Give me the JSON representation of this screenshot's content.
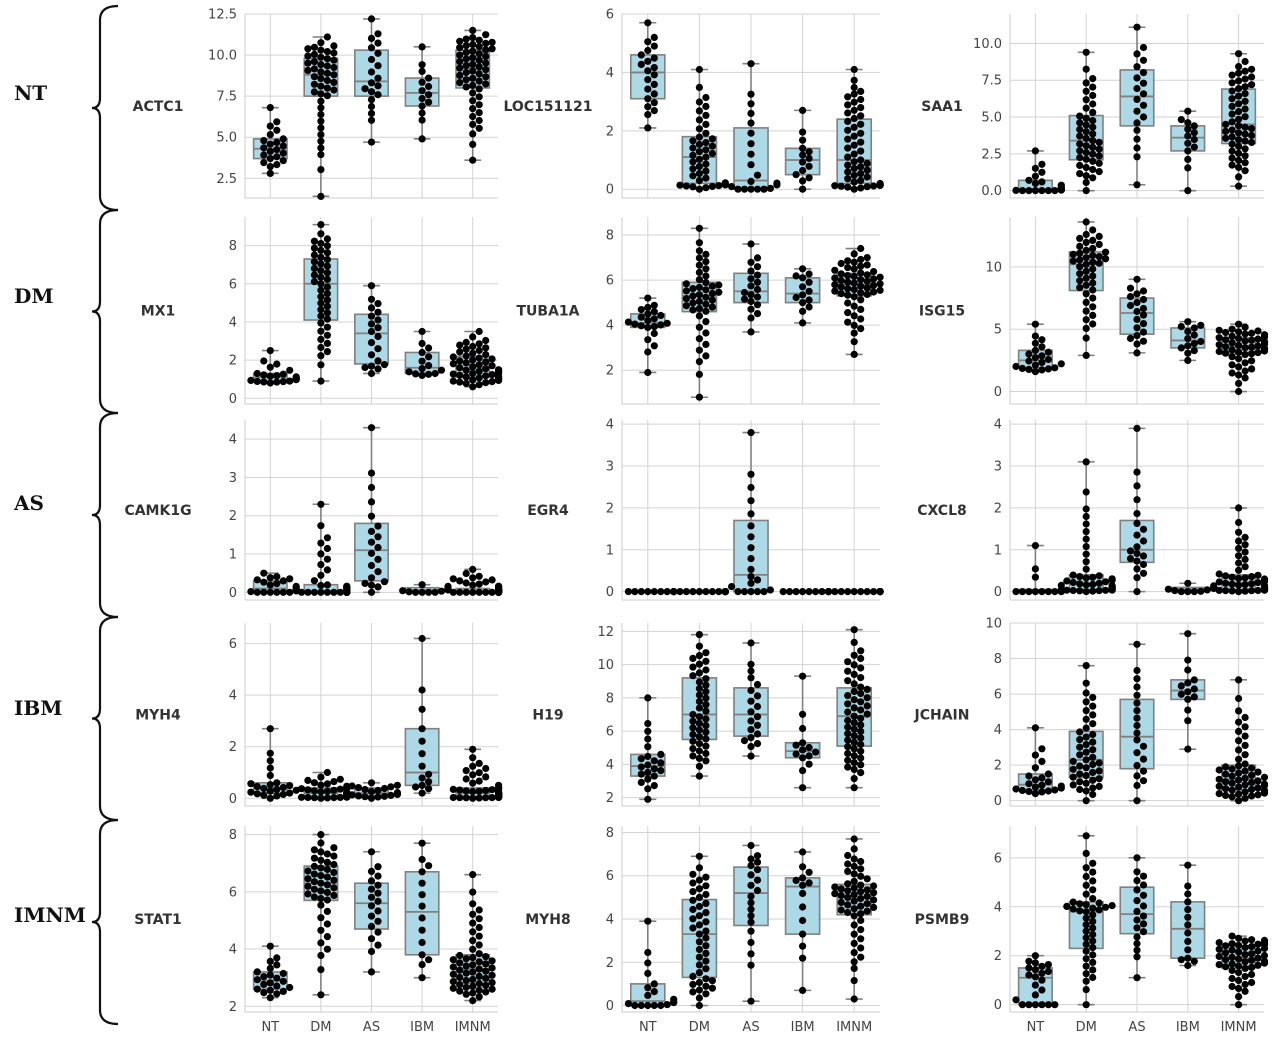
{
  "row_labels": [
    "NT",
    "DM",
    "AS",
    "IBM",
    "IMNM"
  ],
  "colors": {
    "box_fill": "#add8e6",
    "box_edge": "#808080",
    "point": "#000000",
    "grid": "#d3d3d3"
  },
  "chart_data": {
    "type": "box-swarm",
    "categories": [
      "NT",
      "DM",
      "AS",
      "IBM",
      "IMNM"
    ],
    "grid": true,
    "panels": [
      {
        "gene": "ACTC1",
        "row": 0,
        "col": 0,
        "ylim": [
          1.3,
          12.5
        ],
        "yticks": [
          "2.5",
          "5.0",
          "7.5",
          "10.0",
          "12.5"
        ],
        "yvals": [
          2.5,
          5,
          7.5,
          10,
          12.5
        ],
        "boxes": [
          {
            "q1": 3.7,
            "med": 4.3,
            "q3": 4.9,
            "lo": 2.8,
            "hi": 6.8,
            "n": 22
          },
          {
            "q1": 7.5,
            "med": 8.8,
            "q3": 9.8,
            "lo": 1.4,
            "hi": 11.1,
            "n": 45
          },
          {
            "q1": 7.5,
            "med": 8.4,
            "q3": 10.3,
            "lo": 4.7,
            "hi": 12.2,
            "n": 20
          },
          {
            "q1": 6.9,
            "med": 7.7,
            "q3": 8.6,
            "lo": 4.9,
            "hi": 10.5,
            "n": 14
          },
          {
            "q1": 8.0,
            "med": 9.2,
            "q3": 10.3,
            "lo": 3.6,
            "hi": 11.5,
            "n": 55
          }
        ]
      },
      {
        "gene": "LOC151121",
        "row": 0,
        "col": 1,
        "ylim": [
          -0.3,
          6
        ],
        "yticks": [
          "0",
          "2",
          "4",
          "6"
        ],
        "yvals": [
          0,
          2,
          4,
          6
        ],
        "boxes": [
          {
            "q1": 3.1,
            "med": 4.0,
            "q3": 4.6,
            "lo": 2.1,
            "hi": 5.7,
            "n": 22
          },
          {
            "q1": 0.2,
            "med": 1.1,
            "q3": 1.8,
            "lo": 0,
            "hi": 4.1,
            "n": 45
          },
          {
            "q1": 0.0,
            "med": 0.3,
            "q3": 2.1,
            "lo": 0,
            "hi": 4.3,
            "n": 20
          },
          {
            "q1": 0.5,
            "med": 1.0,
            "q3": 1.4,
            "lo": 0,
            "hi": 2.7,
            "n": 14
          },
          {
            "q1": 0.2,
            "med": 1.0,
            "q3": 2.4,
            "lo": 0,
            "hi": 4.1,
            "n": 55
          }
        ]
      },
      {
        "gene": "SAA1",
        "row": 0,
        "col": 2,
        "ylim": [
          -0.5,
          12
        ],
        "yticks": [
          "0.0",
          "2.5",
          "5.0",
          "7.5",
          "10.0"
        ],
        "yvals": [
          0,
          2.5,
          5,
          7.5,
          10
        ],
        "boxes": [
          {
            "q1": 0,
            "med": 0.1,
            "q3": 0.7,
            "lo": 0,
            "hi": 2.7,
            "n": 22
          },
          {
            "q1": 2.1,
            "med": 3.4,
            "q3": 5.1,
            "lo": 0,
            "hi": 9.4,
            "n": 45
          },
          {
            "q1": 4.4,
            "med": 6.4,
            "q3": 8.2,
            "lo": 0.4,
            "hi": 11.1,
            "n": 20
          },
          {
            "q1": 2.7,
            "med": 3.6,
            "q3": 4.4,
            "lo": 0,
            "hi": 5.4,
            "n": 14
          },
          {
            "q1": 3.2,
            "med": 4.5,
            "q3": 6.9,
            "lo": 0.3,
            "hi": 9.3,
            "n": 55
          }
        ]
      },
      {
        "gene": "MX1",
        "row": 1,
        "col": 0,
        "ylim": [
          -0.3,
          9.5
        ],
        "yticks": [
          "0",
          "2",
          "4",
          "6",
          "8"
        ],
        "yvals": [
          0,
          2,
          4,
          6,
          8
        ],
        "boxes": [
          {
            "q1": 0.9,
            "med": 1.1,
            "q3": 1.3,
            "lo": 0.8,
            "hi": 2.5,
            "n": 22
          },
          {
            "q1": 4.1,
            "med": 6.0,
            "q3": 7.3,
            "lo": 0.9,
            "hi": 9.1,
            "n": 45
          },
          {
            "q1": 1.8,
            "med": 3.4,
            "q3": 4.4,
            "lo": 1.3,
            "hi": 5.9,
            "n": 20
          },
          {
            "q1": 1.3,
            "med": 1.6,
            "q3": 2.4,
            "lo": 1.2,
            "hi": 3.5,
            "n": 14
          },
          {
            "q1": 1.1,
            "med": 1.5,
            "q3": 2.2,
            "lo": 0.6,
            "hi": 3.5,
            "n": 55
          }
        ]
      },
      {
        "gene": "TUBA1A",
        "row": 1,
        "col": 1,
        "ylim": [
          0.5,
          8.8
        ],
        "yticks": [
          "2",
          "4",
          "6",
          "8"
        ],
        "yvals": [
          2,
          4,
          6,
          8
        ],
        "boxes": [
          {
            "q1": 3.9,
            "med": 4.1,
            "q3": 4.5,
            "lo": 1.9,
            "hi": 5.2,
            "n": 22
          },
          {
            "q1": 4.6,
            "med": 5.3,
            "q3": 5.9,
            "lo": 0.8,
            "hi": 8.3,
            "n": 45
          },
          {
            "q1": 5.0,
            "med": 5.5,
            "q3": 6.3,
            "lo": 3.7,
            "hi": 7.6,
            "n": 20
          },
          {
            "q1": 5.0,
            "med": 5.4,
            "q3": 6.1,
            "lo": 4.1,
            "hi": 6.5,
            "n": 14
          },
          {
            "q1": 5.3,
            "med": 5.8,
            "q3": 6.3,
            "lo": 2.7,
            "hi": 7.4,
            "n": 55
          }
        ]
      },
      {
        "gene": "ISG15",
        "row": 1,
        "col": 2,
        "ylim": [
          -1,
          14
        ],
        "yticks": [
          "0",
          "5",
          "10"
        ],
        "yvals": [
          0,
          5,
          10
        ],
        "boxes": [
          {
            "q1": 1.9,
            "med": 2.5,
            "q3": 3.3,
            "lo": 1.6,
            "hi": 5.4,
            "n": 22
          },
          {
            "q1": 8.1,
            "med": 10.2,
            "q3": 11.2,
            "lo": 2.9,
            "hi": 13.6,
            "n": 45
          },
          {
            "q1": 4.6,
            "med": 6.3,
            "q3": 7.5,
            "lo": 3.1,
            "hi": 9.0,
            "n": 20
          },
          {
            "q1": 3.5,
            "med": 4.1,
            "q3": 5.1,
            "lo": 2.5,
            "hi": 5.6,
            "n": 14
          },
          {
            "q1": 3.0,
            "med": 3.6,
            "q3": 4.3,
            "lo": 0,
            "hi": 5.4,
            "n": 55
          }
        ]
      },
      {
        "gene": "CAMK1G",
        "row": 2,
        "col": 0,
        "ylim": [
          -0.2,
          4.5
        ],
        "yticks": [
          "0",
          "1",
          "2",
          "3",
          "4"
        ],
        "yvals": [
          0,
          1,
          2,
          3,
          4
        ],
        "boxes": [
          {
            "q1": 0,
            "med": 0.1,
            "q3": 0.3,
            "lo": 0,
            "hi": 0.5,
            "n": 22
          },
          {
            "q1": 0,
            "med": 0,
            "q3": 0.2,
            "lo": 0,
            "hi": 2.3,
            "n": 45
          },
          {
            "q1": 0.3,
            "med": 1.1,
            "q3": 1.8,
            "lo": 0,
            "hi": 4.3,
            "n": 20
          },
          {
            "q1": 0,
            "med": 0.05,
            "q3": 0.12,
            "lo": 0,
            "hi": 0.2,
            "n": 14
          },
          {
            "q1": 0,
            "med": 0.02,
            "q3": 0.1,
            "lo": 0,
            "hi": 0.6,
            "n": 55
          }
        ]
      },
      {
        "gene": "EGR4",
        "row": 2,
        "col": 1,
        "ylim": [
          -0.2,
          4.1
        ],
        "yticks": [
          "0",
          "1",
          "2",
          "3",
          "4"
        ],
        "yvals": [
          0,
          1,
          2,
          3,
          4
        ],
        "boxes": [
          {
            "q1": 0,
            "med": 0,
            "q3": 0,
            "lo": 0,
            "hi": 0,
            "n": 12
          },
          {
            "q1": 0,
            "med": 0,
            "q3": 0,
            "lo": 0,
            "hi": 0,
            "n": 20
          },
          {
            "q1": 0,
            "med": 0.4,
            "q3": 1.7,
            "lo": 0,
            "hi": 3.8,
            "n": 20
          },
          {
            "q1": 0,
            "med": 0,
            "q3": 0,
            "lo": 0,
            "hi": 0,
            "n": 12
          },
          {
            "q1": 0,
            "med": 0,
            "q3": 0,
            "lo": 0,
            "hi": 0,
            "n": 20
          }
        ]
      },
      {
        "gene": "CXCL8",
        "row": 2,
        "col": 2,
        "ylim": [
          -0.2,
          4.1
        ],
        "yticks": [
          "0",
          "1",
          "2",
          "3",
          "4"
        ],
        "yvals": [
          0,
          1,
          2,
          3,
          4
        ],
        "boxes": [
          {
            "q1": 0,
            "med": 0,
            "q3": 0.05,
            "lo": 0,
            "hi": 1.1,
            "n": 16
          },
          {
            "q1": 0.05,
            "med": 0.2,
            "q3": 0.4,
            "lo": 0,
            "hi": 3.1,
            "n": 45
          },
          {
            "q1": 0.7,
            "med": 1.0,
            "q3": 1.7,
            "lo": 0,
            "hi": 3.9,
            "n": 20
          },
          {
            "q1": 0,
            "med": 0.05,
            "q3": 0.1,
            "lo": 0,
            "hi": 0.2,
            "n": 12
          },
          {
            "q1": 0.05,
            "med": 0.2,
            "q3": 0.4,
            "lo": 0,
            "hi": 2.0,
            "n": 55
          }
        ]
      },
      {
        "gene": "MYH4",
        "row": 3,
        "col": 0,
        "ylim": [
          -0.3,
          6.8
        ],
        "yticks": [
          "0",
          "2",
          "4",
          "6"
        ],
        "yvals": [
          0,
          2,
          4,
          6
        ],
        "boxes": [
          {
            "q1": 0.2,
            "med": 0.4,
            "q3": 0.6,
            "lo": 0,
            "hi": 2.7,
            "n": 22
          },
          {
            "q1": 0.05,
            "med": 0.2,
            "q3": 0.4,
            "lo": 0,
            "hi": 1.0,
            "n": 40
          },
          {
            "q1": 0.1,
            "med": 0.2,
            "q3": 0.4,
            "lo": 0,
            "hi": 0.6,
            "n": 20
          },
          {
            "q1": 0.5,
            "med": 1.0,
            "q3": 2.7,
            "lo": 0.2,
            "hi": 6.2,
            "n": 14
          },
          {
            "q1": 0.05,
            "med": 0.2,
            "q3": 0.4,
            "lo": 0,
            "hi": 1.9,
            "n": 55
          }
        ]
      },
      {
        "gene": "H19",
        "row": 3,
        "col": 1,
        "ylim": [
          1.5,
          12.5
        ],
        "yticks": [
          "2",
          "4",
          "6",
          "8",
          "10",
          "12"
        ],
        "yvals": [
          2,
          4,
          6,
          8,
          10,
          12
        ],
        "boxes": [
          {
            "q1": 3.3,
            "med": 3.9,
            "q3": 4.6,
            "lo": 1.9,
            "hi": 8.0,
            "n": 22
          },
          {
            "q1": 5.5,
            "med": 7.0,
            "q3": 9.2,
            "lo": 3.3,
            "hi": 11.8,
            "n": 45
          },
          {
            "q1": 5.7,
            "med": 7.0,
            "q3": 8.6,
            "lo": 4.5,
            "hi": 11.3,
            "n": 20
          },
          {
            "q1": 4.4,
            "med": 4.8,
            "q3": 5.3,
            "lo": 2.6,
            "hi": 9.3,
            "n": 14
          },
          {
            "q1": 5.1,
            "med": 6.9,
            "q3": 8.6,
            "lo": 2.6,
            "hi": 12.1,
            "n": 55
          }
        ]
      },
      {
        "gene": "JCHAIN",
        "row": 3,
        "col": 2,
        "ylim": [
          -0.3,
          10
        ],
        "yticks": [
          "0",
          "2",
          "4",
          "6",
          "8",
          "10"
        ],
        "yvals": [
          0,
          2,
          4,
          6,
          8,
          10
        ],
        "boxes": [
          {
            "q1": 0.6,
            "med": 0.9,
            "q3": 1.5,
            "lo": 0.4,
            "hi": 4.1,
            "n": 22
          },
          {
            "q1": 1.3,
            "med": 2.3,
            "q3": 3.9,
            "lo": 0,
            "hi": 7.6,
            "n": 45
          },
          {
            "q1": 1.8,
            "med": 3.6,
            "q3": 5.7,
            "lo": 0,
            "hi": 8.8,
            "n": 20
          },
          {
            "q1": 5.7,
            "med": 6.2,
            "q3": 6.8,
            "lo": 2.9,
            "hi": 9.4,
            "n": 14
          },
          {
            "q1": 0.6,
            "med": 1.2,
            "q3": 2.0,
            "lo": 0,
            "hi": 6.8,
            "n": 55
          }
        ]
      },
      {
        "gene": "STAT1",
        "row": 4,
        "col": 0,
        "ylim": [
          1.8,
          8.3
        ],
        "yticks": [
          "2",
          "4",
          "6",
          "8"
        ],
        "yvals": [
          2,
          4,
          6,
          8
        ],
        "boxes": [
          {
            "q1": 2.6,
            "med": 2.9,
            "q3": 3.2,
            "lo": 2.3,
            "hi": 4.1,
            "n": 22
          },
          {
            "q1": 5.7,
            "med": 6.3,
            "q3": 6.9,
            "lo": 2.4,
            "hi": 8.0,
            "n": 45
          },
          {
            "q1": 4.7,
            "med": 5.6,
            "q3": 6.3,
            "lo": 3.2,
            "hi": 7.4,
            "n": 20
          },
          {
            "q1": 3.8,
            "med": 5.3,
            "q3": 6.7,
            "lo": 3.0,
            "hi": 7.7,
            "n": 14
          },
          {
            "q1": 2.8,
            "med": 3.3,
            "q3": 3.8,
            "lo": 2.2,
            "hi": 6.6,
            "n": 55
          }
        ]
      },
      {
        "gene": "MYH8",
        "row": 4,
        "col": 1,
        "ylim": [
          -0.3,
          8.3
        ],
        "yticks": [
          "0",
          "2",
          "4",
          "6",
          "8"
        ],
        "yvals": [
          0,
          2,
          4,
          6,
          8
        ],
        "boxes": [
          {
            "q1": 0.0,
            "med": 0.2,
            "q3": 1.0,
            "lo": 0,
            "hi": 3.9,
            "n": 18
          },
          {
            "q1": 1.3,
            "med": 3.3,
            "q3": 4.9,
            "lo": 0,
            "hi": 6.9,
            "n": 45
          },
          {
            "q1": 3.7,
            "med": 5.2,
            "q3": 6.4,
            "lo": 0.2,
            "hi": 7.4,
            "n": 20
          },
          {
            "q1": 3.3,
            "med": 5.5,
            "q3": 5.9,
            "lo": 0.7,
            "hi": 7.1,
            "n": 14
          },
          {
            "q1": 4.2,
            "med": 5.0,
            "q3": 5.6,
            "lo": 0.3,
            "hi": 7.7,
            "n": 55
          }
        ]
      },
      {
        "gene": "PSMB9",
        "row": 4,
        "col": 2,
        "ylim": [
          -0.3,
          7.3
        ],
        "yticks": [
          "0",
          "2",
          "4",
          "6"
        ],
        "yvals": [
          0,
          2,
          4,
          6
        ],
        "boxes": [
          {
            "q1": 0,
            "med": 1.1,
            "q3": 1.5,
            "lo": 0,
            "hi": 2.0,
            "n": 22
          },
          {
            "q1": 2.3,
            "med": 3.8,
            "q3": 4.2,
            "lo": 0,
            "hi": 6.9,
            "n": 45
          },
          {
            "q1": 2.9,
            "med": 3.7,
            "q3": 4.8,
            "lo": 1.1,
            "hi": 6.0,
            "n": 20
          },
          {
            "q1": 1.9,
            "med": 3.1,
            "q3": 4.2,
            "lo": 1.6,
            "hi": 5.7,
            "n": 14
          },
          {
            "q1": 1.5,
            "med": 1.9,
            "q3": 2.4,
            "lo": 0,
            "hi": 2.8,
            "n": 55
          }
        ]
      }
    ]
  }
}
